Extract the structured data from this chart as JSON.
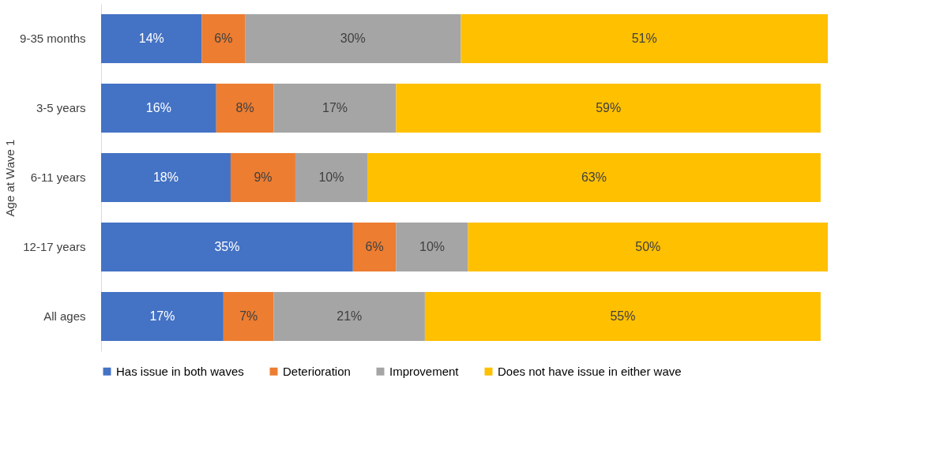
{
  "chart_data": {
    "type": "bar",
    "orientation": "horizontal",
    "stacked": true,
    "ylabel": "Age at Wave 1",
    "legend": "bottom",
    "categories": [
      "9-35 months",
      "3-5 years",
      "6-11 years",
      "12-17 years",
      "All ages"
    ],
    "series": [
      {
        "name": "Has issue in both waves",
        "color": "#4472c4",
        "values": [
          14,
          16,
          18,
          35,
          17
        ],
        "value_labels": [
          "14%",
          "16%",
          "18%",
          "35%",
          "17%"
        ]
      },
      {
        "name": "Deterioration",
        "color": "#ed7d31",
        "values": [
          6,
          8,
          9,
          6,
          7
        ],
        "value_labels": [
          "6%",
          "8%",
          "9%",
          "6%",
          "7%"
        ]
      },
      {
        "name": "Improvement",
        "color": "#a5a5a5",
        "values": [
          30,
          17,
          10,
          10,
          21
        ],
        "value_labels": [
          "30%",
          "17%",
          "10%",
          "10%",
          "21%"
        ]
      },
      {
        "name": "Does not have issue in either wave",
        "color": "#ffc000",
        "values": [
          51,
          59,
          63,
          50,
          55
        ],
        "value_labels": [
          "51%",
          "59%",
          "63%",
          "50%",
          "55%"
        ]
      }
    ]
  }
}
